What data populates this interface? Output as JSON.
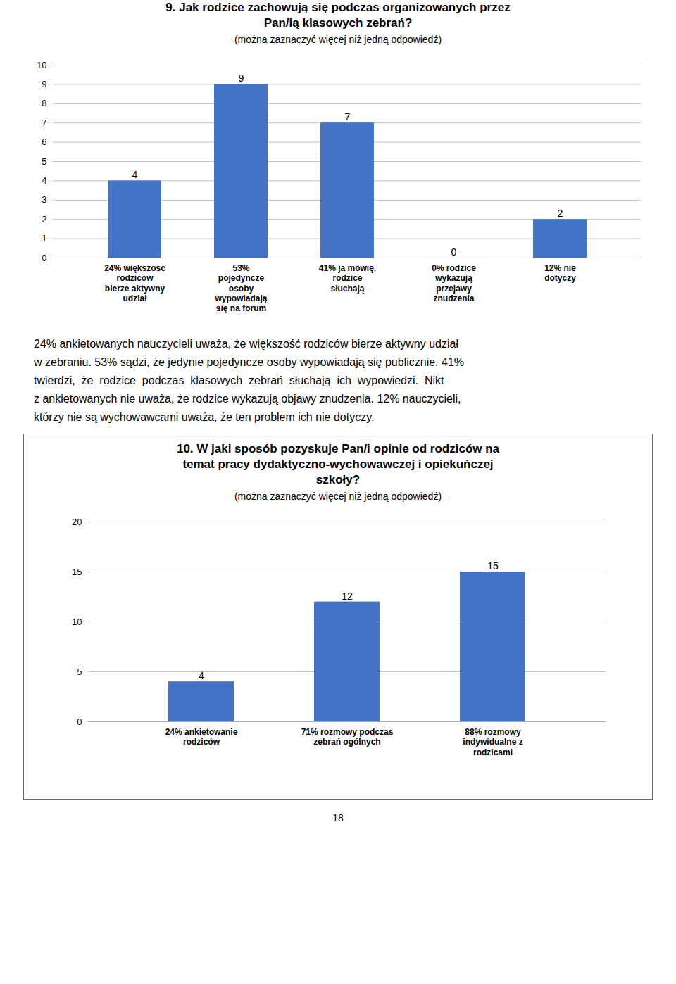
{
  "chart_data": [
    {
      "type": "bar",
      "title": "9. Jak rodzice zachowują się podczas organizowanych przez\nPan/ią klasowych zebrań?",
      "subtitle": "(można zaznaczyć więcej niż jedną odpowiedź)",
      "categories": [
        "24% większość\nrodziców\nbierze aktywny\nudział",
        "53%\npojedyncze\nosoby\nwypowiadają\nsię na forum",
        "41% ja mówię,\nrodzice\nsłuchają",
        "0% rodzice\nwykazują\nprzejawy\nznudzenia",
        "12% nie\ndotyczy"
      ],
      "values": [
        4,
        9,
        7,
        0,
        2
      ],
      "color": "#4472C4",
      "ylim": [
        0,
        10
      ],
      "yticks": [
        0,
        1,
        2,
        3,
        4,
        5,
        6,
        7,
        8,
        9,
        10
      ],
      "grid": true,
      "data_labels": true
    },
    {
      "type": "bar",
      "title": "10. W jaki sposób pozyskuje Pan/i opinie od rodziców na\ntemat pracy dydaktyczno-wychowawczej i opiekuńczej\nszkoły?",
      "subtitle": "(można zaznaczyć więcej niż jedną odpowiedź)",
      "categories": [
        "24% ankietowanie\nrodziców",
        "71% rozmowy podczas\nzebrań ogólnych",
        "88% rozmowy\nindywidualne z\nrodzicami"
      ],
      "values": [
        4,
        12,
        15
      ],
      "color": "#4472C4",
      "ylim": [
        0,
        20
      ],
      "yticks": [
        0,
        5,
        10,
        15,
        20
      ],
      "grid": true,
      "data_labels": true
    }
  ],
  "paragraph": [
    "24% ankietowanych nauczycieli uważa, że większość rodziców bierze aktywny udział",
    "w zebraniu. 53% sądzi, że jedynie pojedyncze osoby wypowiadają się publicznie. 41%",
    "twierdzi,  że  rodzice  podczas  klasowych  zebrań  słuchają  ich  wypowiedzi.  Nikt",
    "z ankietowanych nie uważa, że rodzice wykazują objawy znudzenia. 12% nauczycieli,",
    "którzy nie są wychowawcami uważa, że ten problem ich nie dotyczy."
  ],
  "page_number": "18"
}
